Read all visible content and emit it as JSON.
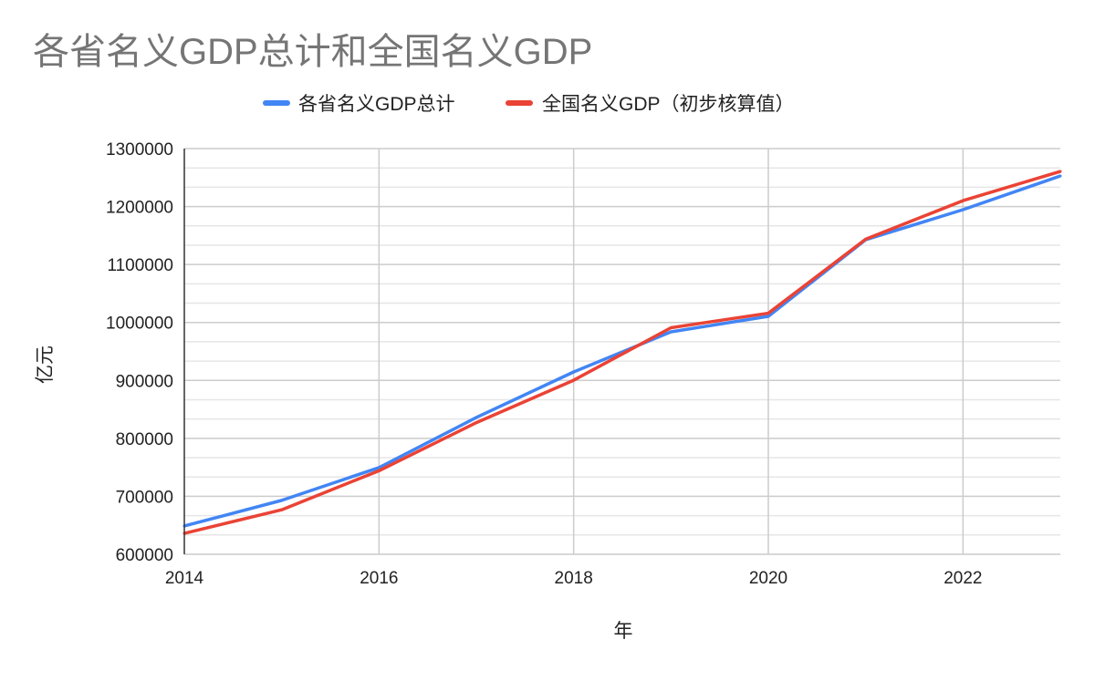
{
  "chart_data": {
    "type": "line",
    "title": "各省名义GDP总计和全国名义GDP",
    "xlabel": "年",
    "ylabel": "亿元",
    "x": [
      2014,
      2015,
      2016,
      2017,
      2018,
      2019,
      2020,
      2021,
      2022,
      2023
    ],
    "xlim": [
      2014,
      2023
    ],
    "ylim": [
      600000,
      1300000
    ],
    "xticks": [
      "2014",
      "2016",
      "2018",
      "2020",
      "2022"
    ],
    "yticks": [
      "600000",
      "700000",
      "800000",
      "900000",
      "1000000",
      "1100000",
      "1200000",
      "1300000"
    ],
    "grid": true,
    "legend_position": "top",
    "series": [
      {
        "name": "各省名义GDP总计",
        "color": "#4285f4",
        "values": [
          648800,
          693000,
          749500,
          836000,
          914600,
          983800,
          1010600,
          1142700,
          1194600,
          1252800
        ]
      },
      {
        "name": "全国名义GDP（初步核算值）",
        "color": "#ea4335",
        "values": [
          636139,
          676708,
          744127,
          827122,
          900309,
          990865,
          1015986,
          1143670,
          1210207,
          1260582
        ]
      }
    ]
  }
}
